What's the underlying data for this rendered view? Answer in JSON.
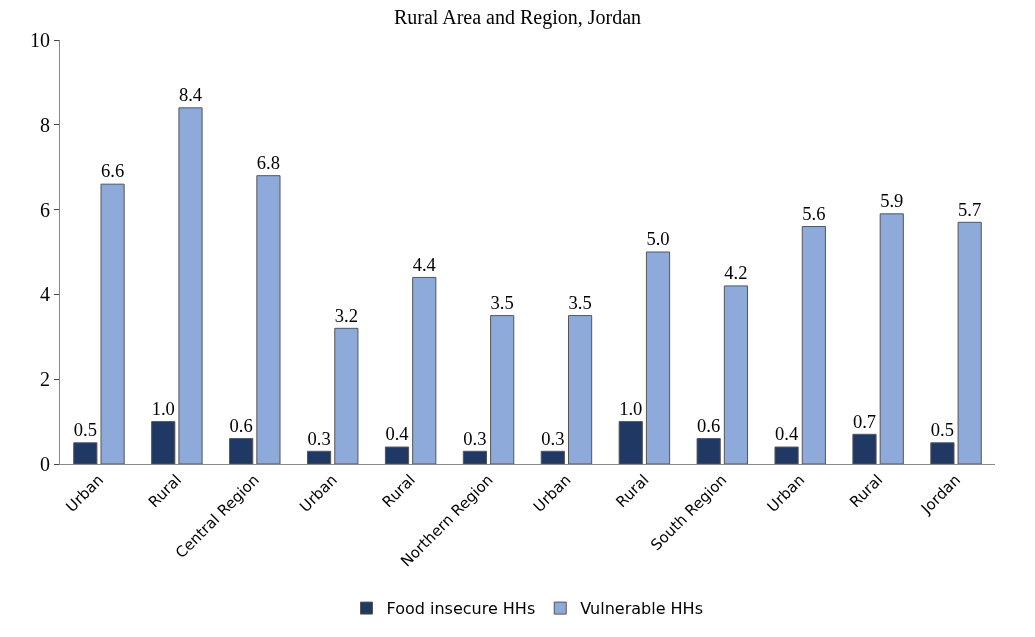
{
  "chart_data": {
    "type": "bar",
    "title": "Rural Area and Region, Jordan",
    "categories": [
      "Urban",
      "Rural",
      "Central Region",
      "Urban",
      "Rural",
      "Northern Region",
      "Urban",
      "Rural",
      "South Region",
      "Urban",
      "Rural",
      "Jordan"
    ],
    "series": [
      {
        "name": "Food insecure HHs",
        "color": "#1f3864",
        "values": [
          0.5,
          1.0,
          0.6,
          0.3,
          0.4,
          0.3,
          0.3,
          1.0,
          0.6,
          0.4,
          0.7,
          0.5
        ],
        "value_labels": [
          "0.5",
          "1.0",
          "0.6",
          "0.3",
          "0.4",
          "0.3",
          "0.3",
          "1.0",
          "0.6",
          "0.4",
          "0.7",
          "0.5"
        ]
      },
      {
        "name": "Vulnerable HHs",
        "color": "#8eaadb",
        "values": [
          6.6,
          8.4,
          6.8,
          3.2,
          4.4,
          3.5,
          3.5,
          5.0,
          4.2,
          5.6,
          5.9,
          5.7
        ],
        "value_labels": [
          "6.6",
          "8.4",
          "6.8",
          "3.2",
          "4.4",
          "3.5",
          "3.5",
          "5.0",
          "4.2",
          "5.6",
          "5.9",
          "5.7"
        ]
      }
    ],
    "ylim": [
      0,
      10
    ],
    "yticks": [
      0,
      2,
      4,
      6,
      8,
      10
    ],
    "legend": "bottom"
  }
}
